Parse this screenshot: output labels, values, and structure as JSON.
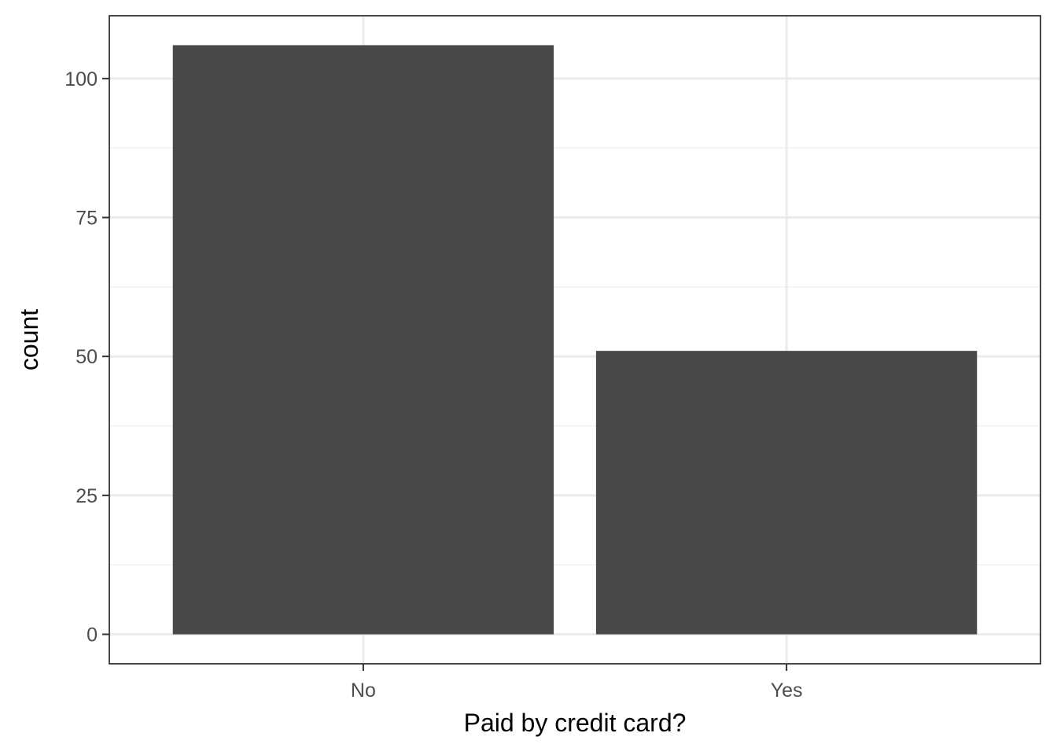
{
  "chart_data": {
    "type": "bar",
    "categories": [
      "No",
      "Yes"
    ],
    "values": [
      106,
      51
    ],
    "title": "",
    "xlabel": "Paid by credit card?",
    "ylabel": "count",
    "ylim": [
      -5.3,
      111.3
    ],
    "yticks": [
      0,
      25,
      50,
      75,
      100
    ],
    "ytick_labels": [
      "0",
      "25",
      "50",
      "75",
      "100"
    ],
    "grid": true,
    "legend": "none",
    "colors": {
      "bar": "#484848",
      "grid_major": "#ebebeb",
      "grid_minor": "#f2f2f2",
      "panel_border": "#333333",
      "tick_text": "#4d4d4d"
    }
  }
}
